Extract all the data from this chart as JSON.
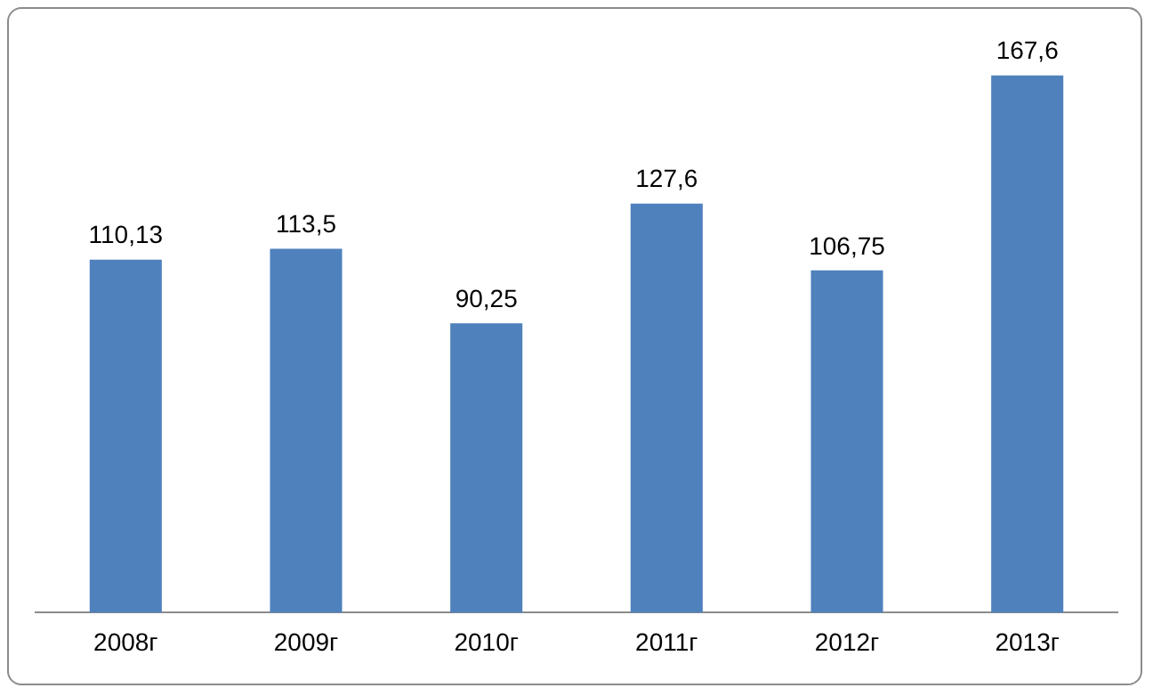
{
  "chart_data": {
    "type": "bar",
    "categories": [
      "2008г",
      "2009г",
      "2010г",
      "2011г",
      "2012г",
      "2013г"
    ],
    "values": [
      110.13,
      113.5,
      90.25,
      127.6,
      106.75,
      167.6
    ],
    "value_labels": [
      "110,13",
      "113,5",
      "90,25",
      "127,6",
      "106,75",
      "167,6"
    ],
    "color": "#4f81bd"
  }
}
